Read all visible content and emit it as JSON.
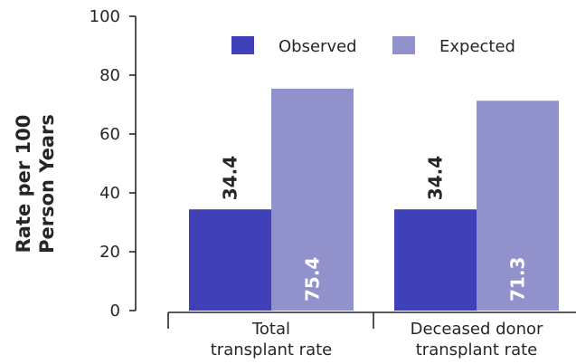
{
  "chart_data": {
    "type": "bar",
    "categories": [
      [
        "Total",
        "transplant rate"
      ],
      [
        "Deceased donor",
        "transplant rate"
      ]
    ],
    "series": [
      {
        "name": "Observed",
        "values": [
          34.4,
          34.4
        ],
        "color": "#4040b8",
        "label_color": "#262626"
      },
      {
        "name": "Expected",
        "values": [
          75.4,
          71.3
        ],
        "color": "#9191cc",
        "label_color": "#ffffff"
      }
    ],
    "ylabel": [
      "Rate per 100",
      "Person Years"
    ],
    "ylim": [
      0,
      100
    ],
    "yticks": [
      0,
      20,
      40,
      60,
      80,
      100
    ],
    "legend_position": "top-right",
    "grid": false
  }
}
